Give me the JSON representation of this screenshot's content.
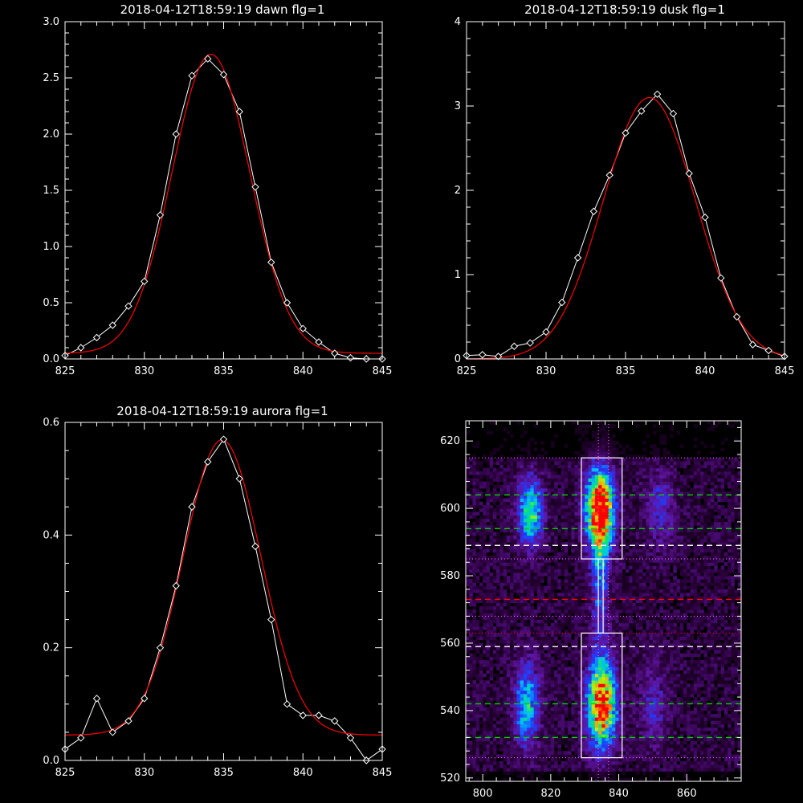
{
  "colors": {
    "background": "#000000",
    "axes": "#ffffff",
    "data_line": "#ffffff",
    "fit_line": "#ff0000",
    "box": "#ffffff",
    "line_green": "#00d000",
    "line_white": "#ffffff",
    "line_red": "#ff0000",
    "line_pink_dotted": "#ff70ff",
    "heat_low": "#280033",
    "heat_mid": "#1a5cff",
    "heat_high": "#ff0000"
  },
  "chart_data": [
    {
      "id": "dawn",
      "type": "line",
      "title": "2018-04-12T18:59:19 dawn flg=1",
      "xlim": [
        825,
        845
      ],
      "ylim": [
        0,
        3.0
      ],
      "xticks": [
        825,
        830,
        835,
        840,
        845
      ],
      "yticks": [
        0.0,
        0.5,
        1.0,
        1.5,
        2.0,
        2.5,
        3.0
      ],
      "ytick_labels": [
        "0.0",
        "0.5",
        "1.0",
        "1.5",
        "2.0",
        "2.5",
        "3.0"
      ],
      "marker": "diamond",
      "series": [
        {
          "role": "data",
          "x": [
            825,
            826,
            827,
            828,
            829,
            830,
            831,
            832,
            833,
            834,
            835,
            836,
            837,
            838,
            839,
            840,
            841,
            842,
            843,
            844,
            845
          ],
          "y": [
            0.03,
            0.1,
            0.19,
            0.3,
            0.47,
            0.69,
            1.28,
            2.0,
            2.52,
            2.67,
            2.53,
            2.2,
            1.53,
            0.86,
            0.5,
            0.27,
            0.15,
            0.05,
            0.01,
            0.0,
            0.0
          ]
        },
        {
          "role": "fit",
          "model": "gaussian",
          "params": {
            "amplitude": 2.66,
            "center": 834.2,
            "sigma": 2.45,
            "offset": 0.05
          }
        }
      ]
    },
    {
      "id": "dusk",
      "type": "line",
      "title": "2018-04-12T18:59:19 dusk flg=1",
      "xlim": [
        825,
        845
      ],
      "ylim": [
        0,
        4
      ],
      "xticks": [
        825,
        830,
        835,
        840,
        845
      ],
      "yticks": [
        0,
        1,
        2,
        3,
        4
      ],
      "ytick_labels": [
        "0",
        "1",
        "2",
        "3",
        "4"
      ],
      "marker": "diamond",
      "series": [
        {
          "role": "data",
          "x": [
            825,
            826,
            827,
            828,
            829,
            830,
            831,
            832,
            833,
            834,
            835,
            836,
            837,
            838,
            839,
            840,
            841,
            842,
            843,
            844,
            845
          ],
          "y": [
            0.04,
            0.05,
            0.03,
            0.15,
            0.19,
            0.32,
            0.67,
            1.2,
            1.75,
            2.18,
            2.68,
            2.94,
            3.14,
            2.91,
            2.2,
            1.68,
            0.96,
            0.5,
            0.17,
            0.1,
            0.03
          ]
        },
        {
          "role": "fit",
          "model": "gaussian",
          "params": {
            "amplitude": 3.1,
            "center": 836.5,
            "sigma": 2.9,
            "offset": 0.0
          }
        }
      ]
    },
    {
      "id": "aurora",
      "type": "line",
      "title": "2018-04-12T18:59:19 aurora flg=1",
      "xlim": [
        825,
        845
      ],
      "ylim": [
        0,
        0.6
      ],
      "xticks": [
        825,
        830,
        835,
        840,
        845
      ],
      "yticks": [
        0.0,
        0.2,
        0.4,
        0.6
      ],
      "ytick_labels": [
        "0.0",
        "0.2",
        "0.4",
        "0.6"
      ],
      "marker": "diamond",
      "series": [
        {
          "role": "data",
          "x": [
            825,
            826,
            827,
            828,
            829,
            830,
            831,
            832,
            833,
            834,
            835,
            836,
            837,
            838,
            839,
            840,
            841,
            842,
            843,
            844,
            845
          ],
          "y": [
            0.02,
            0.04,
            0.11,
            0.05,
            0.07,
            0.11,
            0.2,
            0.31,
            0.45,
            0.53,
            0.57,
            0.5,
            0.38,
            0.25,
            0.1,
            0.08,
            0.08,
            0.07,
            0.04,
            0.0,
            0.02
          ]
        },
        {
          "role": "fit",
          "model": "gaussian",
          "params": {
            "amplitude": 0.524,
            "center": 834.9,
            "sigma": 2.45,
            "offset": 0.045
          }
        }
      ]
    },
    {
      "id": "image",
      "type": "heatmap",
      "title": "",
      "xlim": [
        795,
        876
      ],
      "ylim": [
        519,
        626
      ],
      "xticks": [
        800,
        820,
        840,
        860
      ],
      "yticks": [
        520,
        540,
        560,
        580,
        600,
        620
      ],
      "colormap": "rainbow",
      "blobs": [
        {
          "x": 834.5,
          "y": 600,
          "sx": 3.0,
          "sy": 8.5,
          "amp": 1.0
        },
        {
          "x": 835,
          "y": 542,
          "sx": 3.0,
          "sy": 9.0,
          "amp": 1.0
        },
        {
          "x": 834.5,
          "y": 580,
          "sx": 1.8,
          "sy": 15.0,
          "amp": 0.35
        },
        {
          "x": 814,
          "y": 599,
          "sx": 2.6,
          "sy": 7.0,
          "amp": 0.62
        },
        {
          "x": 813,
          "y": 542,
          "sx": 2.6,
          "sy": 9.0,
          "amp": 0.52
        },
        {
          "x": 852,
          "y": 600,
          "sx": 3.0,
          "sy": 8.0,
          "amp": 0.25
        },
        {
          "x": 850,
          "y": 542,
          "sx": 3.0,
          "sy": 9.0,
          "amp": 0.22
        }
      ],
      "boxes": [
        {
          "x0": 829,
          "x1": 841,
          "y0": 585,
          "y1": 615
        },
        {
          "x0": 829,
          "x1": 841,
          "y0": 526,
          "y1": 563
        }
      ],
      "hlines": [
        {
          "y": 615,
          "color": "pink",
          "style": "dotted"
        },
        {
          "y": 604,
          "color": "green",
          "style": "dashed"
        },
        {
          "y": 594,
          "color": "green",
          "style": "dashed"
        },
        {
          "y": 589,
          "color": "white",
          "style": "dashed"
        },
        {
          "y": 585,
          "color": "pink",
          "style": "dotted"
        },
        {
          "y": 573,
          "color": "red",
          "style": "dashed"
        },
        {
          "y": 568,
          "color": "pink",
          "style": "dotted"
        },
        {
          "y": 563,
          "color": "red",
          "style": "dotted"
        },
        {
          "y": 559,
          "color": "white",
          "style": "dashed"
        },
        {
          "y": 542,
          "color": "green",
          "style": "dashed"
        },
        {
          "y": 532,
          "color": "green",
          "style": "dashed"
        },
        {
          "y": 526,
          "color": "pink",
          "style": "dotted"
        }
      ],
      "vlines": [
        {
          "x": 834,
          "color": "pink",
          "style": "dotted"
        },
        {
          "x": 837,
          "color": "pink",
          "style": "dotted"
        }
      ],
      "connector": {
        "x": 834.7,
        "y0": 563,
        "y1": 585
      }
    }
  ]
}
